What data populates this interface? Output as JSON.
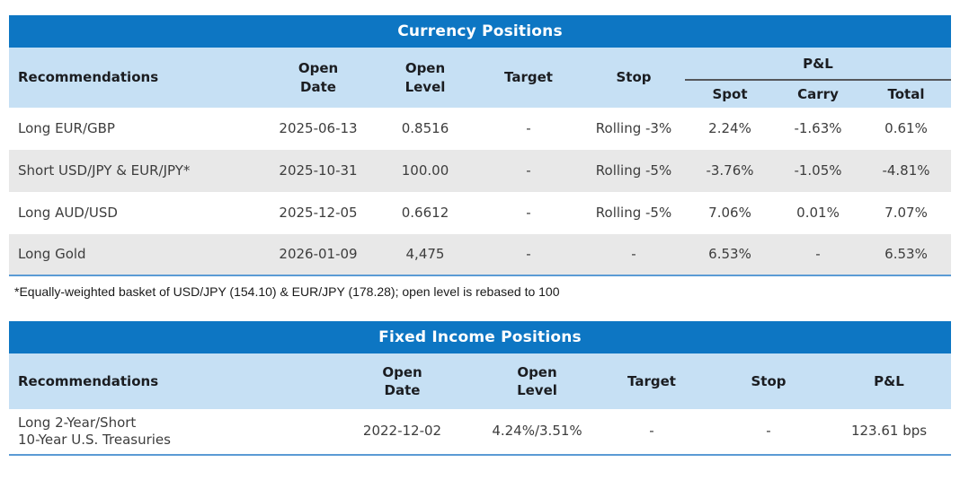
{
  "currency": {
    "title": "Currency Positions",
    "headers": {
      "recommendations": "Recommendations",
      "open_date": "Open\nDate",
      "open_level": "Open\nLevel",
      "target": "Target",
      "stop": "Stop",
      "pnl": "P&L",
      "spot": "Spot",
      "carry": "Carry",
      "total": "Total"
    },
    "rows": [
      {
        "rec": "Long EUR/GBP",
        "open_date": "2025-06-13",
        "open_level": "0.8516",
        "target": "-",
        "stop": "Rolling -3%",
        "spot": "2.24%",
        "carry": "-1.63%",
        "total": "0.61%"
      },
      {
        "rec": "Short USD/JPY & EUR/JPY*",
        "open_date": "2025-10-31",
        "open_level": "100.00",
        "target": "-",
        "stop": "Rolling -5%",
        "spot": "-3.76%",
        "carry": "-1.05%",
        "total": "-4.81%"
      },
      {
        "rec": "Long AUD/USD",
        "open_date": "2025-12-05",
        "open_level": "0.6612",
        "target": "-",
        "stop": "Rolling -5%",
        "spot": "7.06%",
        "carry": "0.01%",
        "total": "7.07%"
      },
      {
        "rec": "Long Gold",
        "open_date": "2026-01-09",
        "open_level": "4,475",
        "target": "-",
        "stop": "-",
        "spot": "6.53%",
        "carry": "-",
        "total": "6.53%"
      }
    ],
    "footnote": "*Equally-weighted basket of USD/JPY (154.10) & EUR/JPY (178.28); open level is rebased to 100"
  },
  "fixed_income": {
    "title": "Fixed Income Positions",
    "headers": {
      "recommendations": "Recommendations",
      "open_date": "Open\nDate",
      "open_level": "Open\nLevel",
      "target": "Target",
      "stop": "Stop",
      "pnl": "P&L"
    },
    "rows": [
      {
        "rec": "Long 2-Year/Short\n10-Year U.S. Treasuries",
        "open_date": "2022-12-02",
        "open_level": "4.24%/3.51%",
        "target": "-",
        "stop": "-",
        "pnl": "123.61 bps"
      }
    ]
  },
  "colors": {
    "title_bar_blue": "#0d76c3",
    "header_light_blue": "#c6e0f4",
    "stripe_gray": "#e8e8e8",
    "table_bottom_border_blue": "#5b9bd5",
    "pnl_underline_gray": "#55575b"
  }
}
